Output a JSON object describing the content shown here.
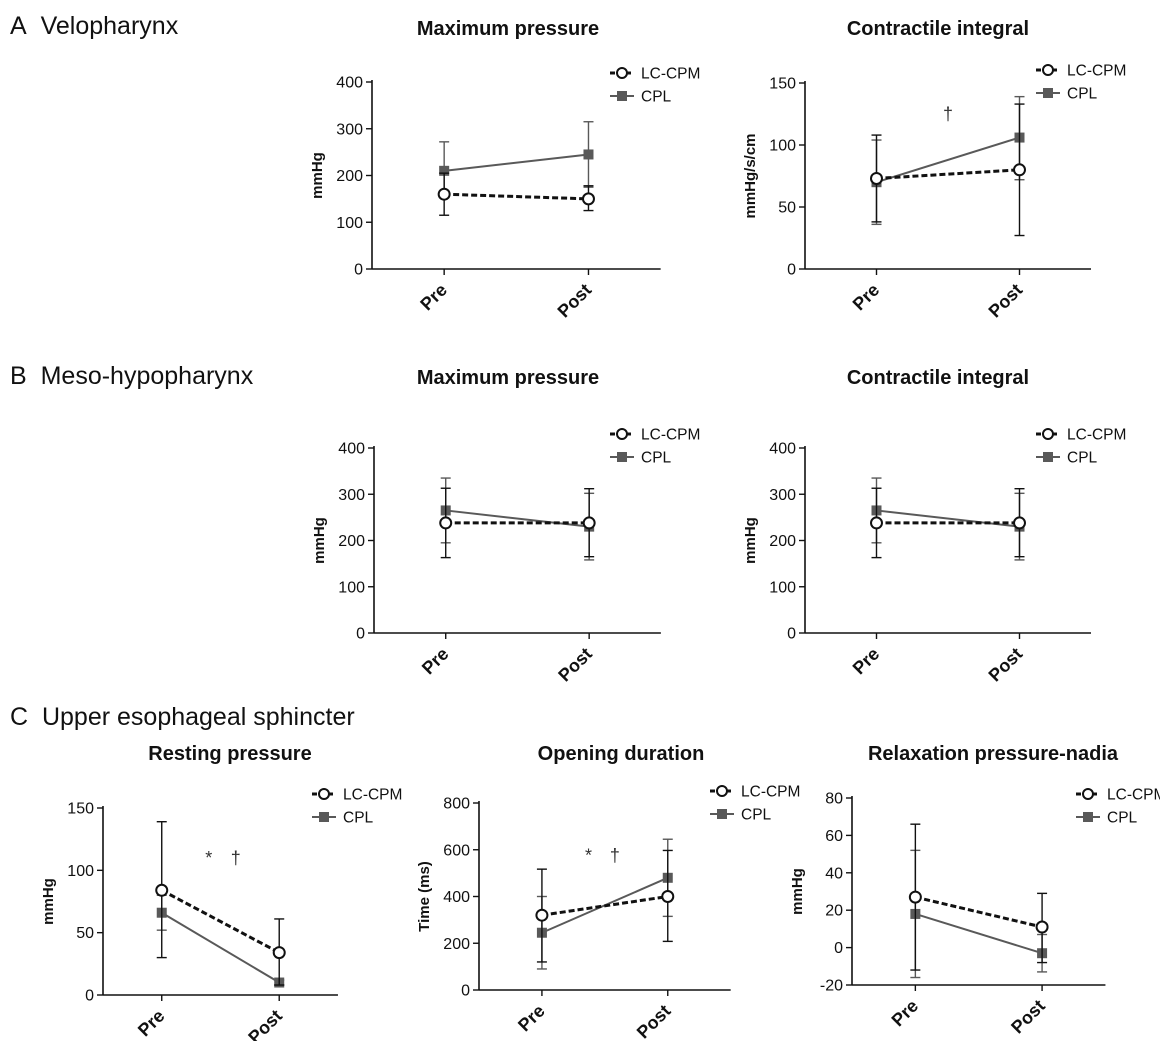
{
  "figure": {
    "section_labels": [
      {
        "letter": "A",
        "name": "Velopharynx"
      },
      {
        "letter": "B",
        "name": "Meso-hypopharynx"
      },
      {
        "letter": "C",
        "name": "Upper esophageal sphincter"
      }
    ]
  },
  "chart_data": [
    {
      "id": "velo-max",
      "type": "line",
      "title": "Maximum pressure",
      "ylabel": "mmHg",
      "categories": [
        "Pre",
        "Post"
      ],
      "ylim": [
        0,
        400
      ],
      "yticks": [
        0,
        100,
        200,
        300,
        400
      ],
      "series": [
        {
          "name": "LC-CPM",
          "style": "dashed-circle",
          "color": "#111111",
          "values": [
            160,
            150
          ],
          "error": [
            [
              115,
              205
            ],
            [
              125,
              178
            ]
          ]
        },
        {
          "name": "CPL",
          "style": "solid-square",
          "color": "#595959",
          "values": [
            210,
            245
          ],
          "error": [
            [
              155,
              272
            ],
            [
              175,
              315
            ]
          ]
        }
      ],
      "annotations": [],
      "legend_position": "top-right"
    },
    {
      "id": "velo-ci",
      "type": "line",
      "title": "Contractile integral",
      "ylabel": "mmHg/s/cm",
      "categories": [
        "Pre",
        "Post"
      ],
      "ylim": [
        0,
        150
      ],
      "yticks": [
        0,
        50,
        100,
        150
      ],
      "series": [
        {
          "name": "LC-CPM",
          "style": "dashed-circle",
          "color": "#111111",
          "values": [
            73,
            80
          ],
          "error": [
            [
              38,
              108
            ],
            [
              27,
              133
            ]
          ]
        },
        {
          "name": "CPL",
          "style": "solid-square",
          "color": "#595959",
          "values": [
            70,
            106
          ],
          "error": [
            [
              36,
              104
            ],
            [
              72,
              139
            ]
          ]
        }
      ],
      "annotations": [
        {
          "text": "†",
          "x": 0.5,
          "y": 120
        }
      ],
      "legend_position": "top-right"
    },
    {
      "id": "meso-max",
      "type": "line",
      "title": "Maximum pressure",
      "ylabel": "mmHg",
      "categories": [
        "Pre",
        "Post"
      ],
      "ylim": [
        0,
        400
      ],
      "yticks": [
        0,
        100,
        200,
        300,
        400
      ],
      "series": [
        {
          "name": "LC-CPM",
          "style": "dashed-circle",
          "color": "#111111",
          "values": [
            238,
            238
          ],
          "error": [
            [
              163,
              313
            ],
            [
              165,
              312
            ]
          ]
        },
        {
          "name": "CPL",
          "style": "solid-square",
          "color": "#595959",
          "values": [
            265,
            230
          ],
          "error": [
            [
              195,
              335
            ],
            [
              158,
              302
            ]
          ]
        }
      ],
      "annotations": [],
      "legend_position": "top-right"
    },
    {
      "id": "meso-ci",
      "type": "line",
      "title": "Contractile integral",
      "ylabel": "mmHg",
      "categories": [
        "Pre",
        "Post"
      ],
      "ylim": [
        0,
        400
      ],
      "yticks": [
        0,
        100,
        200,
        300,
        400
      ],
      "series": [
        {
          "name": "LC-CPM",
          "style": "dashed-circle",
          "color": "#111111",
          "values": [
            238,
            238
          ],
          "error": [
            [
              163,
              313
            ],
            [
              165,
              312
            ]
          ]
        },
        {
          "name": "CPL",
          "style": "solid-square",
          "color": "#595959",
          "values": [
            265,
            230
          ],
          "error": [
            [
              195,
              335
            ],
            [
              158,
              302
            ]
          ]
        }
      ],
      "annotations": [],
      "legend_position": "top-right"
    },
    {
      "id": "ues-rest",
      "type": "line",
      "title": "Resting pressure",
      "ylabel": "mmHg",
      "categories": [
        "Pre",
        "Post"
      ],
      "ylim": [
        0,
        150
      ],
      "yticks": [
        0,
        50,
        100,
        150
      ],
      "series": [
        {
          "name": "LC-CPM",
          "style": "dashed-circle",
          "color": "#111111",
          "values": [
            84,
            34
          ],
          "error": [
            [
              30,
              139
            ],
            [
              8,
              61
            ]
          ]
        },
        {
          "name": "CPL",
          "style": "solid-square",
          "color": "#595959",
          "values": [
            66,
            10
          ],
          "error": [
            [
              52,
              80
            ],
            [
              8,
              12
            ]
          ]
        }
      ],
      "annotations": [
        {
          "text": "*",
          "x": 0.4,
          "y": 105
        },
        {
          "text": "†",
          "x": 0.63,
          "y": 105
        }
      ],
      "legend_position": "top-right"
    },
    {
      "id": "ues-open",
      "type": "line",
      "title": "Opening duration",
      "ylabel": "Time (ms)",
      "categories": [
        "Pre",
        "Post"
      ],
      "ylim": [
        0,
        800
      ],
      "yticks": [
        0,
        200,
        400,
        600,
        800
      ],
      "series": [
        {
          "name": "LC-CPM",
          "style": "dashed-circle",
          "color": "#111111",
          "values": [
            320,
            400
          ],
          "error": [
            [
              120,
              517
            ],
            [
              208,
              597
            ]
          ]
        },
        {
          "name": "CPL",
          "style": "solid-square",
          "color": "#595959",
          "values": [
            245,
            480
          ],
          "error": [
            [
              90,
              400
            ],
            [
              315,
              645
            ]
          ]
        }
      ],
      "annotations": [
        {
          "text": "*",
          "x": 0.37,
          "y": 550
        },
        {
          "text": "†",
          "x": 0.58,
          "y": 550
        }
      ],
      "legend_position": "top-right"
    },
    {
      "id": "ues-relax",
      "type": "line",
      "title": "Relaxation pressure-nadia",
      "ylabel": "mmHg",
      "categories": [
        "Pre",
        "Post"
      ],
      "ylim": [
        -20,
        80
      ],
      "yticks": [
        -20,
        0,
        20,
        40,
        60,
        80
      ],
      "series": [
        {
          "name": "LC-CPM",
          "style": "dashed-circle",
          "color": "#111111",
          "values": [
            27,
            11
          ],
          "error": [
            [
              -12,
              66
            ],
            [
              -8,
              29
            ]
          ]
        },
        {
          "name": "CPL",
          "style": "solid-square",
          "color": "#595959",
          "values": [
            18,
            -3
          ],
          "error": [
            [
              -16,
              52
            ],
            [
              -13,
              7
            ]
          ]
        }
      ],
      "annotations": [],
      "legend_position": "top-right"
    }
  ]
}
